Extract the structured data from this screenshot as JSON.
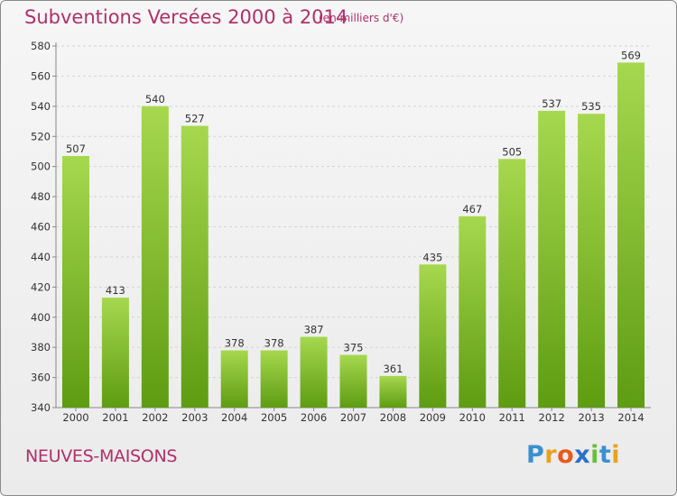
{
  "title": "Subventions Versées 2000 à 2014",
  "subtitle": "(en milliers d'€)",
  "city": "NEUVES-MAISONS",
  "logo": {
    "letters": [
      "P",
      "r",
      "o",
      "x",
      "i",
      "t",
      "i"
    ],
    "colors": [
      "#3a8fd0",
      "#e8a21e",
      "#e85a1e",
      "#2a70c8",
      "#6abf3a",
      "#3a8fd0",
      "#e8a21e"
    ]
  },
  "colors": {
    "bar_top": "#a6d84e",
    "bar_bottom": "#5e9c12",
    "title": "#b0306a"
  },
  "chart_data": {
    "type": "bar",
    "categories": [
      "2000",
      "2001",
      "2002",
      "2003",
      "2004",
      "2005",
      "2006",
      "2007",
      "2008",
      "2009",
      "2010",
      "2011",
      "2012",
      "2013",
      "2014"
    ],
    "values": [
      507,
      413,
      540,
      527,
      378,
      378,
      387,
      375,
      361,
      435,
      467,
      505,
      537,
      535,
      569
    ],
    "title": "Subventions Versées 2000 à 2014",
    "xlabel": "",
    "ylabel": "",
    "ylim": [
      340,
      580
    ],
    "yticks": [
      340,
      360,
      380,
      400,
      420,
      440,
      460,
      480,
      500,
      520,
      540,
      560,
      580
    ],
    "grid": true
  }
}
